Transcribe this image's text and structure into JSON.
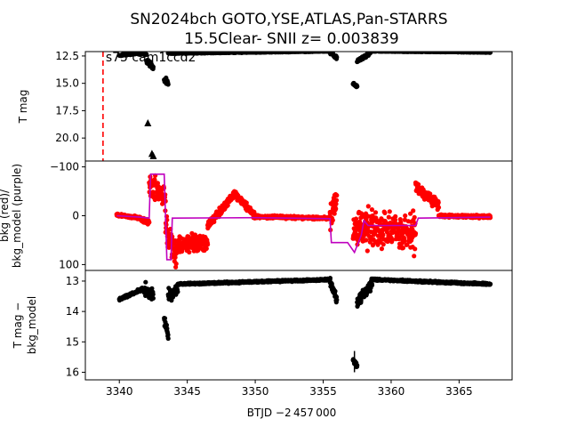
{
  "figure": {
    "title_line1": "SN2024bch  GOTO,YSE,ATLAS,Pan-STARRS",
    "title_line2": "15.5Clear- SNII z= 0.003839",
    "xlabel": "BTJD −2 457 000",
    "colors": {
      "data": "#000000",
      "bkg": "#ff0000",
      "model": "#bf00bf",
      "marker_line": "#ff0000"
    }
  },
  "chart_data": [
    {
      "type": "scatter",
      "panel": "top",
      "ylabel": "T mag",
      "ylim_inverted": [
        22.1,
        12.1
      ],
      "yticks": [
        "12.5",
        "15.0",
        "17.5",
        "20.0"
      ],
      "annotation": "s75 cam1ccd2",
      "vline_x": 3338.8,
      "segments": [
        {
          "x0": 3340.0,
          "x1": 3341.3,
          "y0": 12.45,
          "y1": 12.25,
          "spread": 0.08
        },
        {
          "x0": 3341.3,
          "x1": 3342.0,
          "y0": 12.25,
          "y1": 12.35,
          "spread": 0.12
        },
        {
          "x0": 3342.0,
          "x1": 3342.5,
          "y0": 12.9,
          "y1": 13.6,
          "spread": 0.35
        },
        {
          "x0": 3343.3,
          "x1": 3343.6,
          "y0": 14.5,
          "y1": 15.0,
          "spread": 0.5
        },
        {
          "x0": 3343.6,
          "x1": 3355.5,
          "y0": 12.25,
          "y1": 12.05,
          "spread": 0.06
        },
        {
          "x0": 3355.5,
          "x1": 3356.0,
          "y0": 12.1,
          "y1": 12.7,
          "spread": 0.2
        },
        {
          "x0": 3357.2,
          "x1": 3357.5,
          "y0": 15.0,
          "y1": 15.3,
          "spread": 0.2
        },
        {
          "x0": 3357.5,
          "x1": 3358.5,
          "y0": 13.0,
          "y1": 12.2,
          "spread": 0.2
        },
        {
          "x0": 3358.5,
          "x1": 3367.3,
          "y0": 12.05,
          "y1": 12.15,
          "spread": 0.05
        }
      ],
      "upper_limits": [
        {
          "x": 3342.1,
          "y": 18.6
        },
        {
          "x": 3342.4,
          "y": 21.4
        },
        {
          "x": 3342.5,
          "y": 21.6
        }
      ]
    },
    {
      "type": "scatter",
      "panel": "middle",
      "ylabel_line1": "bkg (red)/",
      "ylabel_line2": "bkg_model (purple)",
      "ylim": [
        -112,
        112
      ],
      "yticks": [
        "−100",
        "0",
        "100"
      ],
      "bkg_segments": [
        {
          "x0": 3339.8,
          "x1": 3341.5,
          "y0": -2,
          "y1": 5,
          "spread": 4
        },
        {
          "x0": 3341.5,
          "x1": 3342.2,
          "y0": 5,
          "y1": 15,
          "spread": 6
        },
        {
          "x0": 3342.2,
          "x1": 3343.4,
          "y0": -60,
          "y1": -40,
          "spread": 40
        },
        {
          "x0": 3343.4,
          "x1": 3344.2,
          "y0": 20,
          "y1": 80,
          "spread": 40
        },
        {
          "x0": 3344.2,
          "x1": 3346.5,
          "y0": 60,
          "y1": 55,
          "spread": 25
        },
        {
          "x0": 3346.5,
          "x1": 3348.5,
          "y0": 20,
          "y1": -45,
          "spread": 12
        },
        {
          "x0": 3348.5,
          "x1": 3350.0,
          "y0": -45,
          "y1": 2,
          "spread": 10
        },
        {
          "x0": 3350.0,
          "x1": 3355.5,
          "y0": 2,
          "y1": 5,
          "spread": 4
        },
        {
          "x0": 3355.5,
          "x1": 3356.0,
          "y0": 10,
          "y1": -40,
          "spread": 40
        },
        {
          "x0": 3357.2,
          "x1": 3361.8,
          "y0": 20,
          "y1": 40,
          "spread": 55
        },
        {
          "x0": 3361.8,
          "x1": 3363.5,
          "y0": -60,
          "y1": -20,
          "spread": 15
        },
        {
          "x0": 3363.5,
          "x1": 3367.3,
          "y0": 0,
          "y1": 2,
          "spread": 4
        }
      ],
      "model_line": {
        "x": [
          3339.8,
          3341.5,
          3342.2,
          3342.3,
          3343.3,
          3343.5,
          3343.8,
          3343.9,
          3350.0,
          3355.5,
          3355.6,
          3356.8,
          3357.3,
          3357.8,
          3358.0,
          3358.3,
          3361.8,
          3362.0,
          3367.3
        ],
        "y": [
          0,
          3,
          5,
          -85,
          -85,
          90,
          90,
          5,
          4,
          6,
          55,
          55,
          75,
          40,
          10,
          20,
          20,
          5,
          3
        ]
      }
    },
    {
      "type": "scatter",
      "panel": "bottom",
      "ylabel_line1": "T mag −",
      "ylabel_line2": "bkg_model",
      "ylim_inverted": [
        16.25,
        12.65
      ],
      "yticks": [
        "13",
        "14",
        "15",
        "16"
      ],
      "xlim": [
        3337.5,
        3368.9
      ],
      "xticks": [
        "3340",
        "3345",
        "3350",
        "3355",
        "3360",
        "3365"
      ],
      "segments": [
        {
          "x0": 3340.0,
          "x1": 3341.8,
          "y0": 13.6,
          "y1": 13.25,
          "spread": 0.06
        },
        {
          "x0": 3341.8,
          "x1": 3342.5,
          "y0": 13.25,
          "y1": 13.5,
          "spread": 0.3
        },
        {
          "x0": 3343.3,
          "x1": 3343.6,
          "y0": 14.2,
          "y1": 14.7,
          "spread": 0.3
        },
        {
          "x0": 3343.6,
          "x1": 3344.3,
          "y0": 13.5,
          "y1": 13.3,
          "spread": 0.3
        },
        {
          "x0": 3344.3,
          "x1": 3355.5,
          "y0": 13.1,
          "y1": 12.95,
          "spread": 0.04
        },
        {
          "x0": 3355.5,
          "x1": 3356.0,
          "y0": 13.0,
          "y1": 13.6,
          "spread": 0.2
        },
        {
          "x0": 3357.2,
          "x1": 3357.5,
          "y0": 15.6,
          "y1": 15.8,
          "spread": 0.15
        },
        {
          "x0": 3357.5,
          "x1": 3358.6,
          "y0": 13.7,
          "y1": 13.1,
          "spread": 0.25
        },
        {
          "x0": 3358.6,
          "x1": 3367.3,
          "y0": 12.95,
          "y1": 13.1,
          "spread": 0.04
        }
      ]
    }
  ]
}
